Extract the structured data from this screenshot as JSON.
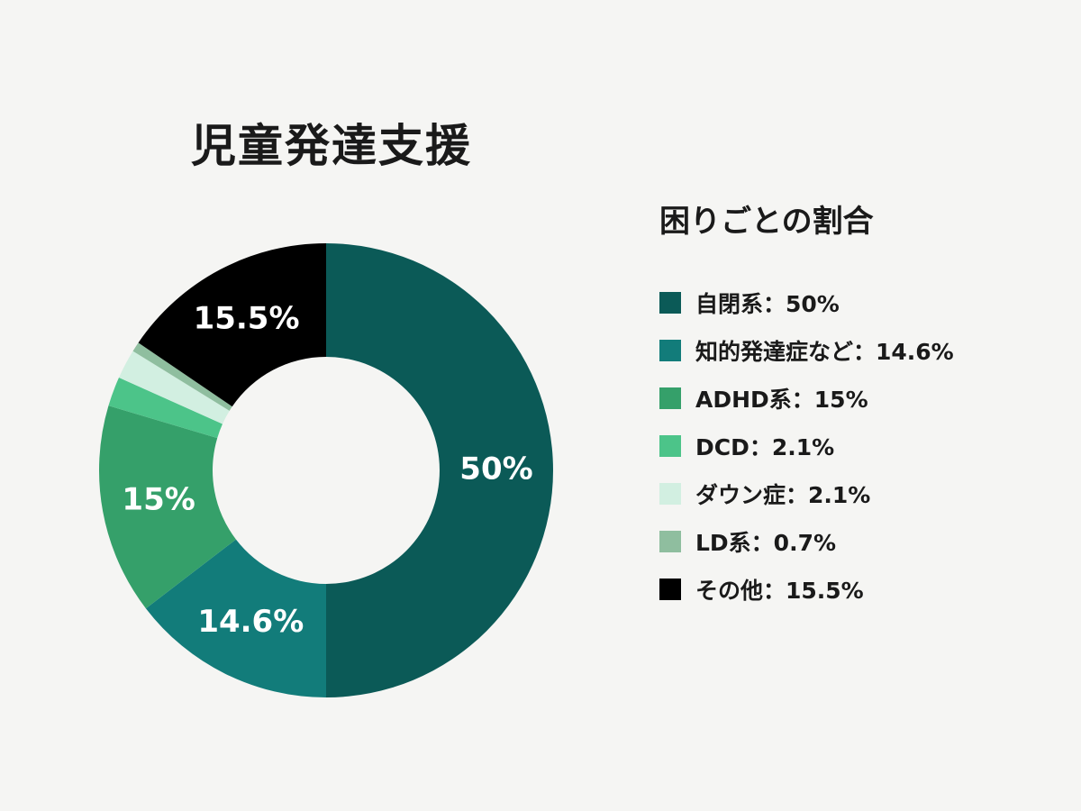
{
  "chart_data": {
    "type": "pie",
    "donut": true,
    "title": "児童発達支援",
    "legend_title": "困りごとの割合",
    "legend_position": "right",
    "slices": [
      {
        "name": "自閉系",
        "value": 50,
        "data_label": "50%",
        "legend_label": "自閉系：50%",
        "color": "#0b5a57"
      },
      {
        "name": "知的発達症など",
        "value": 14.6,
        "data_label": "14.6%",
        "legend_label": "知的発達症など：14.6%",
        "color": "#127c7a"
      },
      {
        "name": "ADHD系",
        "value": 15,
        "data_label": "15%",
        "legend_label": "ADHD系：15%",
        "color": "#35a06a"
      },
      {
        "name": "DCD",
        "value": 2.1,
        "data_label": "",
        "legend_label": "DCD：2.1%",
        "color": "#4cc489"
      },
      {
        "name": "ダウン症",
        "value": 2.1,
        "data_label": "",
        "legend_label": "ダウン症：2.1%",
        "color": "#d2efe1"
      },
      {
        "name": "LD系",
        "value": 0.7,
        "data_label": "",
        "legend_label": "LD系：0.7%",
        "color": "#8fbe9f"
      },
      {
        "name": "その他",
        "value": 15.5,
        "data_label": "15.5%",
        "legend_label": "その他：15.5%",
        "color": "#000000"
      }
    ]
  }
}
